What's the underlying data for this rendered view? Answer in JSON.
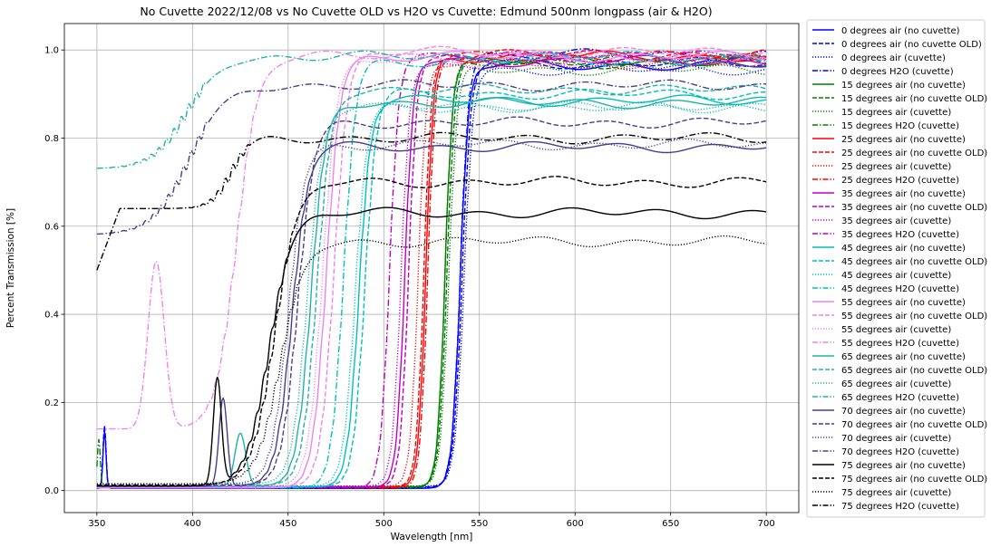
{
  "chart_data": {
    "type": "line",
    "title": "No Cuvette 2022/12/08 vs No Cuvette OLD vs H2O vs Cuvette: Edmund 500nm longpass (air & H2O)",
    "xlabel": "Wavelength [nm]",
    "ylabel": "Percent Transmission [%]",
    "xlim": [
      333,
      717
    ],
    "ylim": [
      -0.05,
      1.06
    ],
    "xticks": [
      350,
      400,
      450,
      500,
      550,
      600,
      650,
      700
    ],
    "yticks": [
      0.0,
      0.2,
      0.4,
      0.6,
      0.8,
      1.0
    ],
    "grid": true,
    "legend_position": "outside-right",
    "series": [
      {
        "name": "0 degrees air (no cuvette)",
        "color": "#0000ff",
        "style": "solid",
        "edge": 540,
        "low": 0.005,
        "high": 0.965,
        "w": 2.2,
        "spike": {
          "x": 354,
          "h": 0.13
        }
      },
      {
        "name": "0 degrees air (no cuvette OLD)",
        "color": "#0000ff",
        "style": "dashed",
        "edge": 541,
        "low": 0.008,
        "high": 0.97,
        "w": 2.3,
        "spike": {
          "x": 354,
          "h": 0.14
        }
      },
      {
        "name": "0 degrees air (cuvette)",
        "color": "#0000ff",
        "style": "dotted",
        "edge": 542,
        "low": 0.01,
        "high": 0.955,
        "w": 2.4
      },
      {
        "name": "0 degrees H2O (cuvette)",
        "color": "#0000ff",
        "style": "dashdot",
        "edge": 540,
        "low": 0.006,
        "high": 0.99,
        "w": 2.2
      },
      {
        "name": "15 degrees air (no cuvette)",
        "color": "#008000",
        "style": "solid",
        "edge": 532,
        "low": 0.008,
        "high": 0.975,
        "w": 2.0
      },
      {
        "name": "15 degrees air (no cuvette OLD)",
        "color": "#008000",
        "style": "dashed",
        "edge": 533,
        "low": 0.009,
        "high": 0.97,
        "w": 2.1
      },
      {
        "name": "15 degrees air (cuvette)",
        "color": "#008000",
        "style": "dotted",
        "edge": 534,
        "low": 0.01,
        "high": 0.955,
        "w": 2.2
      },
      {
        "name": "15 degrees H2O (cuvette)",
        "color": "#008000",
        "style": "dashdot",
        "edge": 532,
        "low": 0.006,
        "high": 0.975,
        "w": 2.0,
        "spike": {
          "x": 351,
          "h": 0.11
        }
      },
      {
        "name": "25 degrees air (no cuvette)",
        "color": "#ff0000",
        "style": "solid",
        "edge": 522,
        "low": 0.008,
        "high": 0.985,
        "w": 2.0
      },
      {
        "name": "25 degrees air (no cuvette OLD)",
        "color": "#ff0000",
        "style": "dashed",
        "edge": 521,
        "low": 0.009,
        "high": 0.99,
        "w": 2.0
      },
      {
        "name": "25 degrees air (cuvette)",
        "color": "#ff0000",
        "style": "dotted",
        "edge": 518,
        "low": 0.01,
        "high": 0.97,
        "w": 2.1
      },
      {
        "name": "25 degrees H2O (cuvette)",
        "color": "#ff0000",
        "style": "dashdot",
        "edge": 523,
        "low": 0.006,
        "high": 0.985,
        "w": 2.0
      },
      {
        "name": "35 degrees air (no cuvette)",
        "color": "#bf00bf",
        "style": "solid",
        "edge": 511,
        "low": 0.008,
        "high": 0.975,
        "w": 2.2
      },
      {
        "name": "35 degrees air (no cuvette OLD)",
        "color": "#bf00bf",
        "style": "dashed",
        "edge": 513,
        "low": 0.009,
        "high": 0.985,
        "w": 2.2
      },
      {
        "name": "35 degrees air (cuvette)",
        "color": "#bf00bf",
        "style": "dotted",
        "edge": 509,
        "low": 0.01,
        "high": 0.965,
        "w": 2.3
      },
      {
        "name": "35 degrees H2O (cuvette)",
        "color": "#bf00bf",
        "style": "dashdot",
        "edge": 503,
        "low": 0.006,
        "high": 0.985,
        "w": 2.4
      },
      {
        "name": "45 degrees air (no cuvette)",
        "color": "#00bfbf",
        "style": "solid",
        "edge": 487,
        "low": 0.008,
        "high": 0.885,
        "w": 3.0
      },
      {
        "name": "45 degrees air (no cuvette OLD)",
        "color": "#00bfbf",
        "style": "dashed",
        "edge": 490,
        "low": 0.009,
        "high": 0.9,
        "w": 3.0
      },
      {
        "name": "45 degrees air (cuvette)",
        "color": "#00bfbf",
        "style": "dotted",
        "edge": 485,
        "low": 0.01,
        "high": 0.87,
        "w": 3.1
      },
      {
        "name": "45 degrees H2O (cuvette)",
        "color": "#00bfbf",
        "style": "dashdot",
        "edge": 479,
        "low": 0.006,
        "high": 0.975,
        "w": 3.2
      },
      {
        "name": "55 degrees air (no cuvette)",
        "color": "#ee82ee",
        "style": "solid",
        "edge": 470,
        "low": 0.006,
        "high": 0.985,
        "w": 3.6
      },
      {
        "name": "55 degrees air (no cuvette OLD)",
        "color": "#ee82ee",
        "style": "dashed",
        "edge": 474,
        "low": 0.008,
        "high": 0.995,
        "w": 3.6
      },
      {
        "name": "55 degrees air (cuvette)",
        "color": "#ee82ee",
        "style": "dotted",
        "edge": 468,
        "low": 0.01,
        "high": 0.975,
        "w": 3.7
      },
      {
        "name": "55 degrees H2O (cuvette)",
        "color": "#ee82ee",
        "style": "dashdot",
        "edge": 423,
        "low": 0.14,
        "high": 0.985,
        "w": 5.5,
        "bump": {
          "x": 381,
          "h": 0.38,
          "w": 6
        }
      },
      {
        "name": "65 degrees air (no cuvette)",
        "color": "#20b2aa",
        "style": "solid",
        "edge": 462,
        "low": 0.01,
        "high": 0.88,
        "w": 3.8,
        "bump": {
          "x": 425,
          "h": 0.12,
          "w": 4
        }
      },
      {
        "name": "65 degrees air (no cuvette OLD)",
        "color": "#20b2aa",
        "style": "dashed",
        "edge": 465,
        "low": 0.012,
        "high": 0.91,
        "w": 3.8
      },
      {
        "name": "65 degrees air (cuvette)",
        "color": "#20b2aa",
        "style": "dotted",
        "edge": 460,
        "low": 0.015,
        "high": 0.87,
        "w": 3.9
      },
      {
        "name": "65 degrees H2O (cuvette)",
        "color": "#20b2aa",
        "style": "dashdot",
        "edge": 397,
        "low": 0.73,
        "high": 0.985,
        "w": 9.0
      },
      {
        "name": "70 degrees air (no cuvette)",
        "color": "#483d8b",
        "style": "solid",
        "edge": 452,
        "low": 0.01,
        "high": 0.78,
        "w": 4.2,
        "bump": {
          "x": 416,
          "h": 0.2,
          "w": 3
        }
      },
      {
        "name": "70 degrees air (no cuvette OLD)",
        "color": "#483d8b",
        "style": "dashed",
        "edge": 455,
        "low": 0.012,
        "high": 0.835,
        "w": 4.2
      },
      {
        "name": "70 degrees air (cuvette)",
        "color": "#483d8b",
        "style": "dotted",
        "edge": 450,
        "low": 0.015,
        "high": 0.785,
        "w": 4.3
      },
      {
        "name": "70 degrees H2O (cuvette)",
        "color": "#483d8b",
        "style": "dashdot",
        "edge": 398,
        "low": 0.58,
        "high": 0.92,
        "w": 9.5
      },
      {
        "name": "75 degrees air (no cuvette)",
        "color": "#000000",
        "style": "solid",
        "edge": 440,
        "low": 0.01,
        "high": 0.63,
        "w": 6.0,
        "bump": {
          "x": 413,
          "h": 0.24,
          "w": 3
        }
      },
      {
        "name": "75 degrees air (no cuvette OLD)",
        "color": "#000000",
        "style": "dashed",
        "edge": 443,
        "low": 0.012,
        "high": 0.7,
        "w": 6.0
      },
      {
        "name": "75 degrees air (cuvette)",
        "color": "#000000",
        "style": "dotted",
        "edge": 446,
        "low": 0.015,
        "high": 0.565,
        "w": 6.2
      },
      {
        "name": "75 degrees H2O (cuvette)",
        "color": "#000000",
        "style": "dashdot",
        "edge": 420,
        "low": 0.64,
        "high": 0.8,
        "w": 5.0,
        "pre": 0.5
      }
    ]
  }
}
